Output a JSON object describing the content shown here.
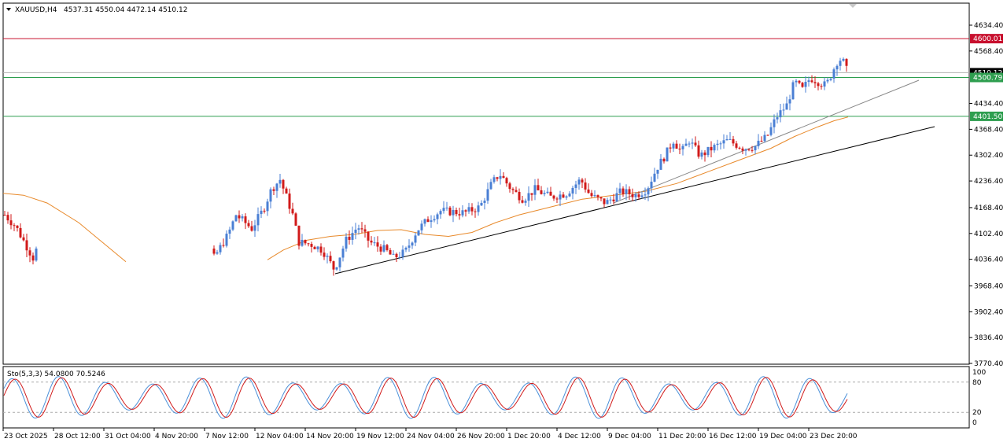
{
  "chart_data": [
    {
      "type": "candlestick",
      "title": "XAUUSD,H4",
      "ohlc_readout": "4537.31 4550.04 4472.14 4510.12",
      "y_ticks": [
        "4634.40",
        "4568.40",
        "4434.40",
        "4368.40",
        "4302.40",
        "4236.40",
        "4168.40",
        "4102.40",
        "4036.40",
        "3968.40",
        "3902.40",
        "3836.40",
        "3770.40"
      ],
      "x_ticks": [
        "23 Oct 2025",
        "28 Oct 12:00",
        "31 Oct 04:00",
        "4 Nov 20:00",
        "7 Nov 12:00",
        "12 Nov 04:00",
        "14 Nov 20:00",
        "19 Nov 12:00",
        "24 Nov 04:00",
        "26 Nov 20:00",
        "1 Dec 20:00",
        "4 Dec 12:00",
        "9 Dec 04:00",
        "11 Dec 20:00",
        "16 Dec 12:00",
        "19 Dec 04:00",
        "23 Dec 20:00"
      ],
      "ylim": [
        3770.4,
        4662.0
      ],
      "hlines": [
        {
          "value": 4600.01,
          "label": "4600.01",
          "color": "#c8102e"
        },
        {
          "value": 4500.79,
          "label": "4500.79",
          "color": "#2e9e4f"
        },
        {
          "value": 4401.5,
          "label": "4401.50",
          "color": "#2e9e4f"
        }
      ],
      "current_price": "4510.12",
      "colors": {
        "up": "#4a7fd4",
        "down": "#d11a1a",
        "ma": "#e8892a",
        "trend": "#000000"
      }
    },
    {
      "type": "line",
      "title": "Sto(5,3,3) 54.0800 70.5246",
      "y_ticks": [
        "100",
        "80",
        "20",
        "0"
      ],
      "levels": [
        80,
        20
      ],
      "colors": {
        "main": "#4a90d9",
        "signal": "#d11a1a"
      }
    }
  ]
}
